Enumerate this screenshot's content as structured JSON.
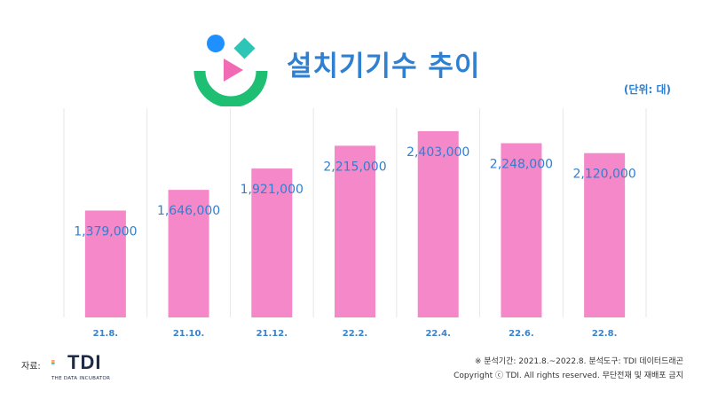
{
  "title": "설치기기수 추이",
  "unit_label": "(단위: 대)",
  "chart_data": {
    "type": "bar",
    "categories": [
      "21.8.",
      "21.10.",
      "21.12.",
      "22.2.",
      "22.4.",
      "22.6.",
      "22.8."
    ],
    "values": [
      1379000,
      1646000,
      1921000,
      2215000,
      2403000,
      2248000,
      2120000
    ],
    "data_labels": [
      "1,379,000",
      "1,646,000",
      "1,921,000",
      "2,215,000",
      "2,403,000",
      "2,248,000",
      "2,120,000"
    ],
    "title": "설치기기수 추이",
    "xlabel": "",
    "ylabel": "",
    "ylim": [
      0,
      2700000
    ],
    "grid": "vertical",
    "bar_color": "#f488c9",
    "label_color": "#2f80d0"
  },
  "footer": {
    "source_label": "자료:",
    "brand_name": "TDI",
    "brand_tagline": "THE DATA INCUBATOR",
    "analysis_note": "※ 분석기간: 2021.8.~2022.8.  분석도구: TDI 데이터드래곤",
    "copyright": "Copyright ⓒ TDI. All rights reserved. 무단전재 및 재배포 금지"
  },
  "colors": {
    "accent": "#2f80d0",
    "bar": "#f488c9",
    "logo_blue": "#1e90ff",
    "logo_teal": "#2ec4b6",
    "logo_green": "#1fbf73",
    "logo_pink": "#f06bb3"
  }
}
